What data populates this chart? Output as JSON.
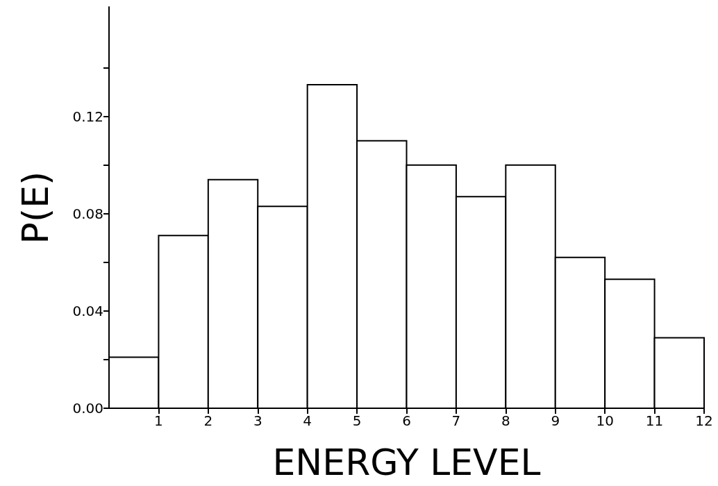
{
  "chart_data": {
    "type": "histogram",
    "xlabel": "ENERGY LEVEL",
    "ylabel": "P(E)",
    "bins": [
      0,
      1,
      2,
      3,
      4,
      5,
      6,
      7,
      8,
      9,
      10,
      11,
      12
    ],
    "values": [
      0.021,
      0.071,
      0.094,
      0.083,
      0.133,
      0.11,
      0.1,
      0.087,
      0.1,
      0.062,
      0.053,
      0.029
    ],
    "color": "#ffffff",
    "xlim": [
      0,
      12
    ],
    "xticks": [
      1,
      2,
      3,
      4,
      5,
      6,
      7,
      8,
      9,
      10,
      11,
      12
    ],
    "ylim": [
      0,
      0.165
    ],
    "yticks": [
      {
        "value": 0,
        "label": "0.00"
      },
      {
        "value": 0.02,
        "label": null
      },
      {
        "value": 0.04,
        "label": "0.04"
      },
      {
        "value": 0.06,
        "label": null
      },
      {
        "value": 0.08,
        "label": "0.08"
      },
      {
        "value": 0.1,
        "label": null
      },
      {
        "value": 0.12,
        "label": "0.12"
      },
      {
        "value": 0.14,
        "label": null
      }
    ],
    "grid": false
  }
}
